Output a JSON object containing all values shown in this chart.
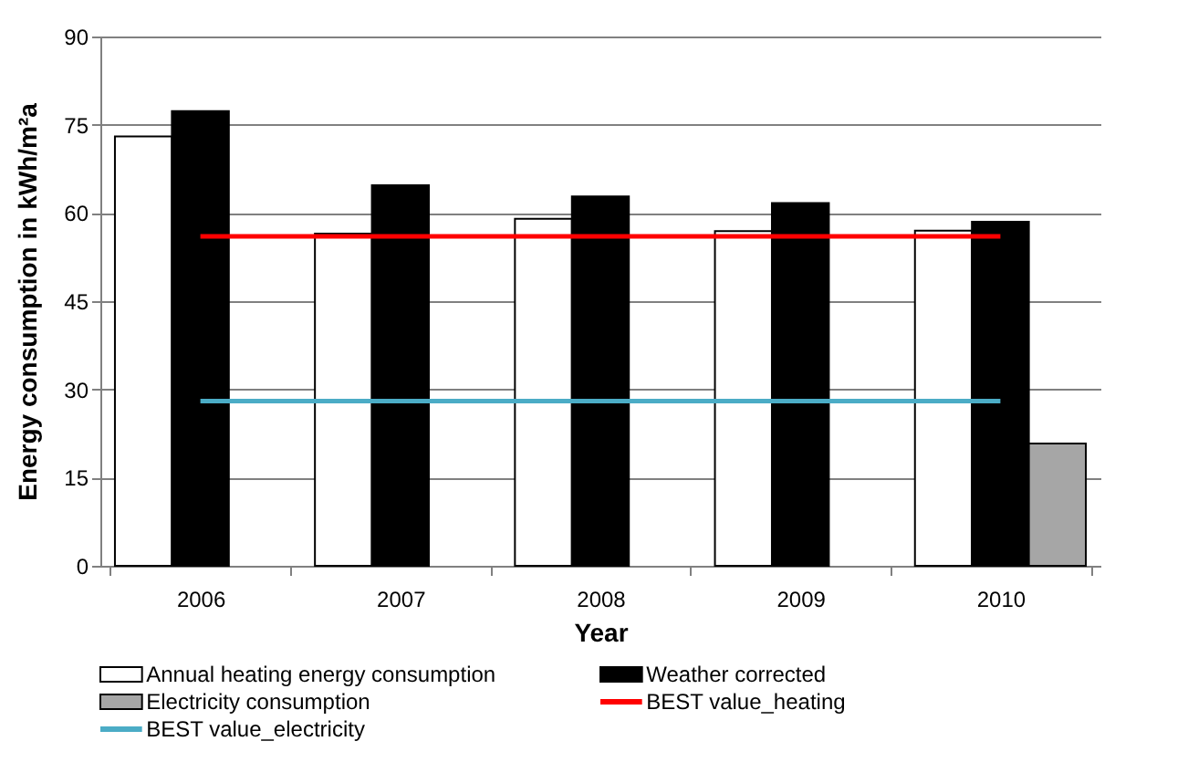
{
  "chart_data": {
    "type": "bar",
    "xlabel": "Year",
    "ylabel": "Energy consumption in kWh/m²a",
    "categories": [
      "2006",
      "2007",
      "2008",
      "2009",
      "2010"
    ],
    "series": [
      {
        "name": "Annual heating energy consumption",
        "color": "#ffffff",
        "values": [
          73,
          56.5,
          59,
          56.9,
          57
        ]
      },
      {
        "name": "Weather corrected",
        "color": "#000000",
        "values": [
          77.3,
          64.7,
          62.8,
          61.7,
          58.5
        ]
      },
      {
        "name": "Electricity consumption",
        "color": "#a6a6a6",
        "values": [
          null,
          null,
          null,
          null,
          20.8
        ]
      },
      {
        "name": "BEST value_heating",
        "type": "line",
        "color": "#ff0000",
        "values": [
          56,
          56,
          56,
          56,
          56
        ]
      },
      {
        "name": "BEST value_electricity",
        "type": "line",
        "color": "#4bacc6",
        "values": [
          28,
          28,
          28,
          28,
          28
        ]
      }
    ],
    "ylim": [
      0,
      90
    ],
    "yticks": [
      0,
      15,
      30,
      45,
      60,
      75,
      90
    ],
    "grid": "y",
    "legend": "bottom"
  }
}
